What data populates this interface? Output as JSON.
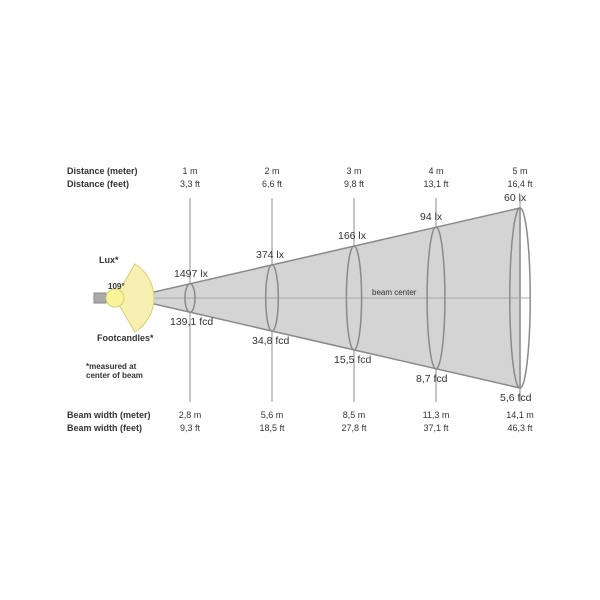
{
  "labels": {
    "distance_meter": "Distance (meter)",
    "distance_feet": "Distance (feet)",
    "lux": "Lux*",
    "footcandles": "Footcandles*",
    "note_line1": "*measured at",
    "note_line2": "center of beam",
    "beam_angle": "109°",
    "beam_center": "beam center",
    "beam_width_meter": "Beam width (meter)",
    "beam_width_feet": "Beam width (feet)"
  },
  "colors": {
    "cone": "#d4d4d4",
    "cone_edge": "#8a8a8a",
    "lamp": "#fbf59a",
    "spread": "#f7f0b0"
  },
  "stations": [
    {
      "m": "1 m",
      "ft": "3,3 ft",
      "lux": "1497 lx",
      "fcd": "139,1 fcd",
      "bw_m": "2,8 m",
      "bw_ft": "9,3 ft"
    },
    {
      "m": "2 m",
      "ft": "6,6 ft",
      "lux": "374 lx",
      "fcd": "34,8 fcd",
      "bw_m": "5,6 m",
      "bw_ft": "18,5 ft"
    },
    {
      "m": "3 m",
      "ft": "9,8 ft",
      "lux": "166 lx",
      "fcd": "15,5 fcd",
      "bw_m": "8,5 m",
      "bw_ft": "27,8 ft"
    },
    {
      "m": "4 m",
      "ft": "13,1 ft",
      "lux": "94 lx",
      "fcd": "8,7 fcd",
      "bw_m": "11,3 m",
      "bw_ft": "37,1 ft"
    },
    {
      "m": "5 m",
      "ft": "16,4 ft",
      "lux": "60 lx",
      "fcd": "5,6 fcd",
      "bw_m": "14,1 m",
      "bw_ft": "46,3 ft"
    }
  ]
}
